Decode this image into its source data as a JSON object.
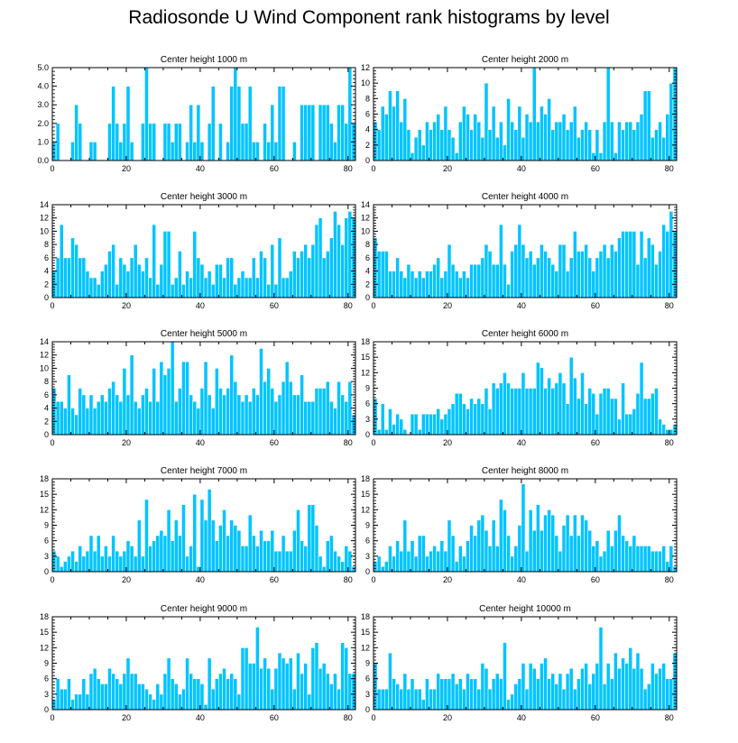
{
  "figure_title": "Radiosonde U Wind Component rank histograms by level",
  "colors": {
    "bar": "#00c4ff",
    "bar_edge": "#ffffff",
    "axis": "#000000"
  },
  "chart_data": [
    {
      "type": "bar",
      "title": "Center height 1000 m",
      "x_start": 0,
      "xlim": [
        0,
        82
      ],
      "xticks": [
        0,
        20,
        40,
        60,
        80
      ],
      "ylim": [
        0,
        5
      ],
      "yticks": [
        "0.0",
        "1.0",
        "2.0",
        "3.0",
        "4.0",
        "5.0"
      ],
      "values": [
        1,
        2,
        0,
        0,
        0,
        1,
        3,
        2,
        0,
        0,
        1,
        1,
        0,
        0,
        0,
        2,
        4,
        2,
        1,
        2,
        4,
        1,
        0,
        0,
        2,
        5,
        2,
        2,
        0,
        0,
        2,
        2,
        1,
        2,
        2,
        0,
        1,
        3,
        1,
        3,
        1,
        0,
        2,
        4,
        0,
        2,
        0,
        1,
        4,
        5,
        4,
        2,
        2,
        4,
        1,
        1,
        0,
        2,
        1,
        3,
        1,
        4,
        4,
        0,
        0,
        1,
        0,
        3,
        3,
        3,
        3,
        0,
        3,
        3,
        3,
        2,
        1,
        3,
        3,
        2,
        5,
        2
      ]
    },
    {
      "type": "bar",
      "title": "Center height 2000 m",
      "x_start": 0,
      "xlim": [
        0,
        82
      ],
      "xticks": [
        0,
        20,
        40,
        60,
        80
      ],
      "ylim": [
        0,
        12
      ],
      "yticks": [
        "0",
        "2",
        "4",
        "6",
        "8",
        "10",
        "12"
      ],
      "values": [
        5,
        4,
        7,
        6,
        9,
        7,
        9,
        5,
        8,
        4,
        1,
        3,
        4,
        2,
        5,
        4,
        5,
        6,
        4,
        7,
        4,
        3,
        1,
        5,
        7,
        6,
        4,
        6,
        5,
        3,
        10,
        4,
        7,
        3,
        5,
        2,
        8,
        5,
        4,
        7,
        3,
        6,
        5,
        12,
        5,
        7,
        6,
        8,
        4,
        5,
        5,
        6,
        4,
        5,
        7,
        3,
        4,
        5,
        4,
        1,
        4,
        1,
        5,
        12,
        5,
        1,
        5,
        4,
        5,
        5,
        4,
        5,
        6,
        9,
        9,
        3,
        4,
        5,
        3,
        6,
        10,
        12
      ]
    },
    {
      "type": "bar",
      "title": "Center height 3000 m",
      "x_start": 0,
      "xlim": [
        0,
        82
      ],
      "xticks": [
        0,
        20,
        40,
        60,
        80
      ],
      "ylim": [
        0,
        14
      ],
      "yticks": [
        "0",
        "2",
        "4",
        "6",
        "8",
        "10",
        "12",
        "14"
      ],
      "values": [
        4,
        6,
        11,
        6,
        6,
        9,
        8,
        6,
        6,
        4,
        3,
        3,
        2,
        4,
        5,
        7,
        8,
        2,
        6,
        5,
        4,
        6,
        8,
        5,
        4,
        6,
        3,
        11,
        2,
        5,
        10,
        10,
        2,
        3,
        7,
        2,
        4,
        3,
        10,
        6,
        5,
        3,
        4,
        2,
        5,
        5,
        3,
        6,
        6,
        2,
        3,
        4,
        3,
        3,
        6,
        3,
        7,
        6,
        2,
        8,
        2,
        9,
        3,
        3,
        4,
        7,
        6,
        7,
        8,
        6,
        8,
        11,
        12,
        6,
        7,
        9,
        13,
        11,
        8,
        12,
        13,
        12
      ]
    },
    {
      "type": "bar",
      "title": "Center height 4000 m",
      "x_start": 0,
      "xlim": [
        0,
        82
      ],
      "xticks": [
        0,
        20,
        40,
        60,
        80
      ],
      "ylim": [
        0,
        14
      ],
      "yticks": [
        "0",
        "2",
        "4",
        "6",
        "8",
        "10",
        "12",
        "14"
      ],
      "values": [
        9,
        7,
        7,
        7,
        4,
        4,
        6,
        4,
        3,
        5,
        4,
        3,
        4,
        3,
        4,
        4,
        5,
        6,
        3,
        4,
        8,
        5,
        4,
        3,
        4,
        3,
        5,
        5,
        5,
        6,
        8,
        7,
        5,
        5,
        11,
        5,
        2,
        7,
        8,
        11,
        8,
        6,
        7,
        5,
        6,
        8,
        7,
        6,
        5,
        4,
        8,
        8,
        4,
        6,
        10,
        7,
        7,
        8,
        6,
        4,
        6,
        7,
        8,
        6,
        8,
        7,
        9,
        10,
        10,
        10,
        10,
        5,
        10,
        6,
        9,
        8,
        5,
        7,
        11,
        10,
        13,
        10
      ]
    },
    {
      "type": "bar",
      "title": "Center height 5000 m",
      "x_start": 0,
      "xlim": [
        0,
        82
      ],
      "xticks": [
        0,
        20,
        40,
        60,
        80
      ],
      "ylim": [
        0,
        14
      ],
      "yticks": [
        "0",
        "2",
        "4",
        "6",
        "8",
        "10",
        "12",
        "14"
      ],
      "values": [
        7,
        5,
        5,
        4,
        9,
        4,
        3,
        7,
        6,
        4,
        6,
        4,
        5,
        6,
        5,
        7,
        8,
        6,
        5,
        10,
        6,
        12,
        5,
        4,
        6,
        7,
        5,
        10,
        5,
        11,
        9,
        10,
        14,
        5,
        7,
        11,
        11,
        6,
        5,
        4,
        7,
        11,
        6,
        4,
        10,
        7,
        6,
        7,
        12,
        8,
        6,
        5,
        6,
        5,
        7,
        6,
        13,
        8,
        10,
        7,
        5,
        6,
        8,
        11,
        8,
        6,
        6,
        9,
        5,
        5,
        5,
        7,
        7,
        7,
        8,
        5,
        4,
        8,
        6,
        5,
        8,
        3
      ]
    },
    {
      "type": "bar",
      "title": "Center height 6000 m",
      "x_start": 0,
      "xlim": [
        0,
        82
      ],
      "xticks": [
        0,
        20,
        40,
        60,
        80
      ],
      "ylim": [
        0,
        18
      ],
      "yticks": [
        "0",
        "3",
        "6",
        "9",
        "12",
        "15",
        "18"
      ],
      "values": [
        7,
        1,
        6,
        1,
        5,
        2,
        4,
        3,
        1,
        0,
        4,
        4,
        1,
        4,
        4,
        4,
        4,
        5,
        3,
        4,
        5,
        6,
        8,
        8,
        6,
        5,
        7,
        6,
        7,
        6,
        9,
        5,
        10,
        9,
        10,
        12,
        10,
        9,
        9,
        9,
        12,
        9,
        9,
        9,
        14,
        13,
        9,
        11,
        9,
        10,
        12,
        10,
        6,
        15,
        11,
        7,
        12,
        6,
        9,
        8,
        4,
        8,
        9,
        9,
        7,
        7,
        3,
        10,
        4,
        4,
        5,
        8,
        14,
        7,
        7,
        8,
        9,
        3,
        2,
        1,
        1,
        2
      ]
    },
    {
      "type": "bar",
      "title": "Center height 7000 m",
      "x_start": 0,
      "xlim": [
        0,
        82
      ],
      "xticks": [
        0,
        20,
        40,
        60,
        80
      ],
      "ylim": [
        0,
        18
      ],
      "yticks": [
        "0",
        "3",
        "6",
        "9",
        "12",
        "15",
        "18"
      ],
      "values": [
        4,
        3,
        1,
        2,
        3,
        4,
        2,
        5,
        3,
        4,
        7,
        4,
        7,
        3,
        5,
        3,
        7,
        4,
        3,
        4,
        6,
        5,
        3,
        10,
        3,
        14,
        5,
        6,
        7,
        8,
        7,
        12,
        6,
        10,
        7,
        13,
        3,
        5,
        15,
        1,
        14,
        10,
        16,
        10,
        6,
        9,
        12,
        7,
        10,
        9,
        8,
        5,
        5,
        11,
        7,
        5,
        8,
        6,
        6,
        8,
        4,
        4,
        7,
        4,
        4,
        8,
        12,
        6,
        5,
        13,
        13,
        9,
        3,
        1,
        6,
        7,
        4,
        3,
        2,
        5,
        4,
        1
      ]
    },
    {
      "type": "bar",
      "title": "Center height 8000 m",
      "x_start": 0,
      "xlim": [
        0,
        82
      ],
      "xticks": [
        0,
        20,
        40,
        60,
        80
      ],
      "ylim": [
        0,
        18
      ],
      "yticks": [
        "0",
        "3",
        "6",
        "9",
        "12",
        "15",
        "18"
      ],
      "values": [
        2,
        3,
        1,
        2,
        5,
        3,
        6,
        4,
        10,
        4,
        6,
        3,
        7,
        7,
        3,
        4,
        5,
        4,
        6,
        4,
        10,
        7,
        2,
        5,
        3,
        6,
        9,
        7,
        10,
        11,
        8,
        5,
        10,
        5,
        14,
        12,
        7,
        3,
        5,
        9,
        17,
        4,
        12,
        8,
        13,
        8,
        11,
        12,
        11,
        7,
        4,
        9,
        11,
        7,
        11,
        7,
        11,
        10,
        8,
        5,
        6,
        3,
        4,
        8,
        5,
        8,
        11,
        7,
        6,
        5,
        7,
        5,
        5,
        5,
        5,
        4,
        4,
        4,
        5,
        2,
        5,
        1
      ]
    },
    {
      "type": "bar",
      "title": "Center height 9000 m",
      "x_start": 0,
      "xlim": [
        0,
        82
      ],
      "xticks": [
        0,
        20,
        40,
        60,
        80
      ],
      "ylim": [
        0,
        18
      ],
      "yticks": [
        "0",
        "3",
        "6",
        "9",
        "12",
        "15",
        "18"
      ],
      "values": [
        2,
        6,
        4,
        4,
        6,
        2,
        3,
        3,
        6,
        3,
        7,
        8,
        6,
        5,
        5,
        8,
        7,
        6,
        5,
        7,
        10,
        7,
        7,
        5,
        5,
        4,
        3,
        2,
        5,
        3,
        7,
        10,
        6,
        5,
        3,
        4,
        10,
        7,
        6,
        6,
        5,
        1,
        10,
        4,
        6,
        7,
        8,
        6,
        7,
        6,
        3,
        12,
        12,
        9,
        9,
        16,
        8,
        10,
        8,
        4,
        8,
        11,
        10,
        9,
        10,
        4,
        11,
        7,
        9,
        3,
        12,
        13,
        8,
        9,
        7,
        5,
        7,
        4,
        13,
        12,
        7,
        7
      ]
    },
    {
      "type": "bar",
      "title": "Center height 10000 m",
      "x_start": 0,
      "xlim": [
        0,
        82
      ],
      "xticks": [
        0,
        20,
        40,
        60,
        80
      ],
      "ylim": [
        0,
        18
      ],
      "yticks": [
        "0",
        "3",
        "6",
        "9",
        "12",
        "15",
        "18"
      ],
      "values": [
        9,
        4,
        4,
        4,
        11,
        6,
        5,
        4,
        7,
        4,
        6,
        4,
        4,
        2,
        6,
        4,
        4,
        7,
        6,
        6,
        6,
        7,
        5,
        6,
        4,
        7,
        6,
        6,
        4,
        9,
        8,
        4,
        6,
        7,
        6,
        13,
        2,
        3,
        5,
        6,
        9,
        4,
        9,
        8,
        6,
        9,
        10,
        6,
        7,
        5,
        7,
        4,
        7,
        8,
        4,
        6,
        8,
        9,
        5,
        7,
        9,
        16,
        5,
        9,
        6,
        11,
        8,
        10,
        9,
        12,
        8,
        11,
        8,
        4,
        5,
        9,
        7,
        8,
        9,
        6,
        6,
        11
      ]
    }
  ]
}
